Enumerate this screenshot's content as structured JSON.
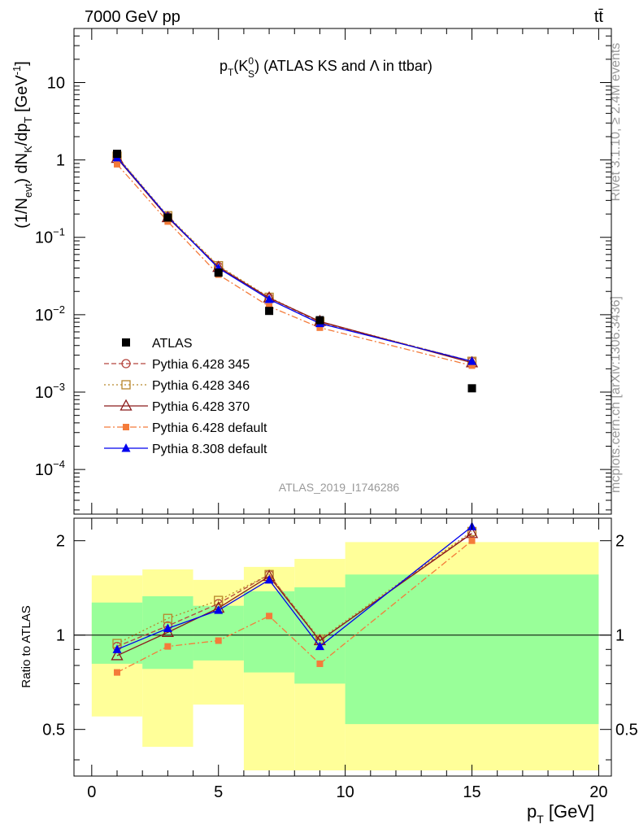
{
  "header": {
    "energy": "7000 GeV pp",
    "process": "tt̄"
  },
  "side": {
    "rivet": "Rivet 3.1.10, ≥ 2.4M events",
    "mcplots": "mcplots.cern.ch [arXiv:1306.3436]"
  },
  "watermark": "ATLAS_2019_I1746286",
  "chart_data": [
    {
      "type": "line",
      "title_parts": {
        "main": "p",
        "sub_t": "T",
        "open": "(K",
        "sup": "0",
        "sub_s": "S",
        "close": ")",
        "rest": " (ATLAS KS and Λ in ttbar)"
      },
      "ylabel_parts": {
        "a": "(1/N",
        "b": "evt",
        "c": ") dN",
        "d": "K",
        "e": "/dp",
        "f": "T",
        "g": " [GeV",
        "h": "-1",
        "i": "]"
      },
      "yscale": "log",
      "ylim": [
        2.65e-05,
        50
      ],
      "xlim": [
        -0.7,
        20.5
      ],
      "ytick_labels": [
        {
          "base": "10",
          "exp": "",
          "value": 10
        },
        {
          "base": "1",
          "exp": "",
          "value": 1
        },
        {
          "base": "10",
          "exp": "−1",
          "value": 0.1
        },
        {
          "base": "10",
          "exp": "−2",
          "value": 0.01
        },
        {
          "base": "10",
          "exp": "−3",
          "value": 0.001
        },
        {
          "base": "10",
          "exp": "−4",
          "value": 0.0001
        }
      ],
      "x": [
        1,
        3,
        5,
        7,
        9,
        15
      ],
      "data": {
        "name": "ATLAS",
        "values": [
          1.2,
          0.18,
          0.035,
          0.0112,
          0.0085,
          0.00112
        ],
        "color": "#000000"
      },
      "series": [
        {
          "name": "Pythia 6.428 345",
          "values": [
            1.1,
            0.185,
            0.042,
            0.0165,
            0.008,
            0.0025
          ],
          "color": "#b5463f",
          "dash": "6,3",
          "marker": "open-circle"
        },
        {
          "name": "Pythia 6.428 346",
          "values": [
            1.12,
            0.19,
            0.043,
            0.0168,
            0.0081,
            0.0025
          ],
          "color": "#b8862b",
          "dash": "2,3",
          "marker": "open-square"
        },
        {
          "name": "Pythia 6.428 370",
          "values": [
            1.05,
            0.18,
            0.041,
            0.0165,
            0.0082,
            0.0024
          ],
          "color": "#8b1a1a",
          "dash": "",
          "marker": "open-triangle"
        },
        {
          "name": "Pythia 6.428 default",
          "values": [
            0.88,
            0.16,
            0.033,
            0.0128,
            0.0068,
            0.0022
          ],
          "color": "#f47b3a",
          "dash": "8,3,2,3",
          "marker": "filled-square"
        },
        {
          "name": "Pythia 8.308 default",
          "values": [
            1.07,
            0.185,
            0.04,
            0.0158,
            0.0077,
            0.0025
          ],
          "color": "#0000ee",
          "dash": "",
          "marker": "filled-triangle"
        }
      ]
    },
    {
      "type": "line",
      "ylabel": "Ratio to ATLAS",
      "xlabel_parts": {
        "main": "p",
        "sub": "T",
        "unit": " [GeV]"
      },
      "yscale": "log",
      "ylim": [
        0.355,
        2.36
      ],
      "xlim": [
        -0.7,
        20.5
      ],
      "xticks": [
        0,
        5,
        10,
        15,
        20
      ],
      "yticks": [
        0.5,
        1,
        2
      ],
      "bins": [
        [
          0,
          2
        ],
        [
          2,
          4
        ],
        [
          4,
          6
        ],
        [
          6,
          8
        ],
        [
          8,
          10
        ],
        [
          10,
          20
        ]
      ],
      "band_outer": [
        [
          0.55,
          1.55
        ],
        [
          0.44,
          1.62
        ],
        [
          0.6,
          1.5
        ],
        [
          0.37,
          1.65
        ],
        [
          0.37,
          1.75
        ],
        [
          0.37,
          1.98
        ]
      ],
      "band_inner": [
        [
          0.81,
          1.27
        ],
        [
          0.78,
          1.33
        ],
        [
          0.83,
          1.24
        ],
        [
          0.76,
          1.38
        ],
        [
          0.7,
          1.42
        ],
        [
          0.52,
          1.56
        ]
      ],
      "x": [
        1,
        3,
        5,
        7,
        9,
        15
      ],
      "series": [
        {
          "name": "Pythia 6.428 345",
          "values": [
            0.92,
            1.07,
            1.26,
            1.56,
            0.96,
            2.12
          ],
          "color": "#b5463f",
          "dash": "6,3",
          "marker": "open-circle"
        },
        {
          "name": "Pythia 6.428 346",
          "values": [
            0.94,
            1.13,
            1.29,
            1.56,
            0.97,
            2.14
          ],
          "color": "#b8862b",
          "dash": "2,3",
          "marker": "open-square"
        },
        {
          "name": "Pythia 6.428 370",
          "values": [
            0.86,
            1.02,
            1.22,
            1.54,
            0.96,
            2.11
          ],
          "color": "#8b1a1a",
          "dash": "",
          "marker": "open-triangle"
        },
        {
          "name": "Pythia 6.428 default",
          "values": [
            0.76,
            0.92,
            0.96,
            1.15,
            0.81,
            2.0
          ],
          "color": "#f47b3a",
          "dash": "8,3,2,3",
          "marker": "filled-square"
        },
        {
          "name": "Pythia 8.308 default",
          "values": [
            0.9,
            1.05,
            1.2,
            1.5,
            0.92,
            2.22
          ],
          "color": "#0000ee",
          "dash": "",
          "marker": "filled-triangle"
        }
      ]
    }
  ]
}
